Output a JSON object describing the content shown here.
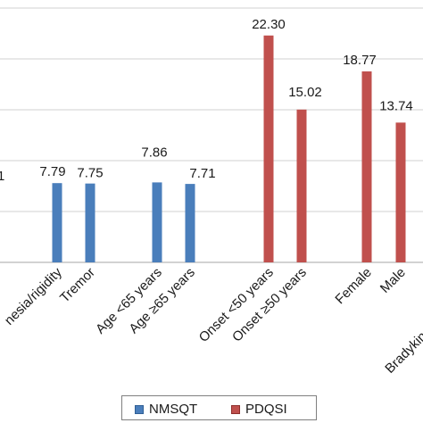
{
  "chart_data": {
    "type": "bar",
    "colors": {
      "NMSQT": "#4a7ebb",
      "PDQSI": "#c0504d",
      "grid": "#d0d0d0",
      "axis": "#a6a6a6"
    },
    "ylim": [
      0,
      25
    ],
    "grid": true,
    "legend_position": "bottom",
    "series": [
      {
        "name": "NMSQT"
      },
      {
        "name": "PDQSI"
      }
    ],
    "bars": [
      {
        "category": "Akinesia/rigidity",
        "series": "NMSQT",
        "value": 7.79,
        "label": "7.79"
      },
      {
        "category": "Tremor",
        "series": "NMSQT",
        "value": 7.75,
        "label": "7.75"
      },
      {
        "category": "Age <65 years",
        "series": "NMSQT",
        "value": 7.86,
        "label": "7.86"
      },
      {
        "category": "Age ≥65 years",
        "series": "NMSQT",
        "value": 7.71,
        "label": "7.71"
      },
      {
        "category": "Onset <50 years",
        "series": "PDQSI",
        "value": 22.3,
        "label": "22.30"
      },
      {
        "category": "Onset ≥50 years",
        "series": "PDQSI",
        "value": 15.02,
        "label": "15.02"
      },
      {
        "category": "Female",
        "series": "PDQSI",
        "value": 18.77,
        "label": "18.77"
      },
      {
        "category": "Male",
        "series": "PDQSI",
        "value": 13.74,
        "label": "13.74"
      }
    ],
    "partial_labels": {
      "left_value": "1",
      "left_category": "nesia/rigidity",
      "right_category": "Bradykinesi"
    }
  }
}
